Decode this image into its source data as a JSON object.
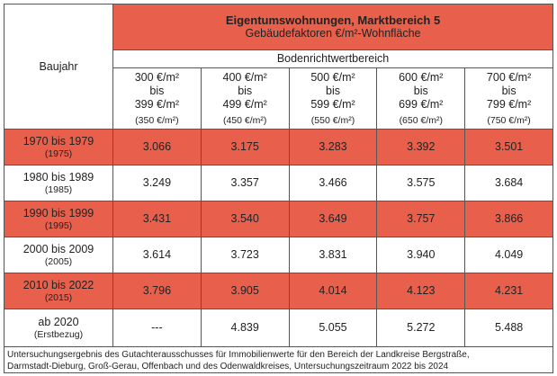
{
  "header": {
    "corner": "Baujahr",
    "title": "Eigentumswohnungen, Marktbereich 5",
    "subtitle": "Gebäudefaktoren €/m²-Wohnfläche",
    "group": "Bodenrichtwertbereich"
  },
  "columns": [
    [
      "300 €/m²",
      "bis",
      "399 €/m²",
      "(350 €/m²)"
    ],
    [
      "400 €/m²",
      "bis",
      "499 €/m²",
      "(450 €/m²)"
    ],
    [
      "500 €/m²",
      "bis",
      "599 €/m²",
      "(550 €/m²)"
    ],
    [
      "600 €/m²",
      "bis",
      "699 €/m²",
      "(650 €/m²)"
    ],
    [
      "700 €/m²",
      "bis",
      "799 €/m²",
      "(750 €/m²)"
    ]
  ],
  "rows": [
    {
      "label": "1970 bis 1979",
      "sub": "(1975)",
      "values": [
        "3.066",
        "3.175",
        "3.283",
        "3.392",
        "3.501"
      ]
    },
    {
      "label": "1980 bis 1989",
      "sub": "(1985)",
      "values": [
        "3.249",
        "3.357",
        "3.466",
        "3.575",
        "3.684"
      ]
    },
    {
      "label": "1990 bis 1999",
      "sub": "(1995)",
      "values": [
        "3.431",
        "3.540",
        "3.649",
        "3.757",
        "3.866"
      ]
    },
    {
      "label": "2000 bis 2009",
      "sub": "(2005)",
      "values": [
        "3.614",
        "3.723",
        "3.831",
        "3.940",
        "4.049"
      ]
    },
    {
      "label": "2010 bis 2022",
      "sub": "(2015)",
      "values": [
        "3.796",
        "3.905",
        "4.014",
        "4.123",
        "4.231"
      ]
    },
    {
      "label": "ab 2020",
      "sub": "(Erstbezug)",
      "values": [
        "---",
        "4.839",
        "5.055",
        "5.272",
        "5.488"
      ]
    }
  ],
  "footnote": [
    "Untersuchungsergebnis des Gutachterausschusses für Immobilienwerte für den Bereich der Landkreise Bergstraße,",
    "Darmstadt-Dieburg, Groß-Gerau, Offenbach und des Odenwaldkreises, Untersuchungszeitraum 2022 bis 2024"
  ]
}
